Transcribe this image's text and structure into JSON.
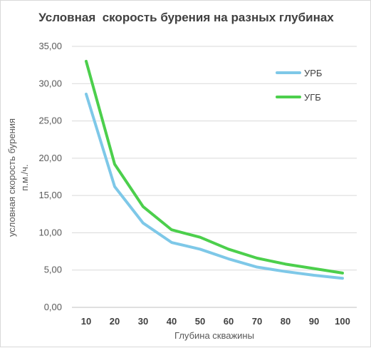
{
  "chart_data": {
    "type": "line",
    "title": "Условная  скорость бурения на разных глубинах",
    "xlabel": "Глубина скважины",
    "ylabel": "условная скорость бурения",
    "ylabel2": "п.м./ч.",
    "categories": [
      "10",
      "20",
      "30",
      "40",
      "50",
      "60",
      "70",
      "80",
      "90",
      "100"
    ],
    "ylim": [
      0,
      35
    ],
    "ytick_step": 5,
    "ytick_labels": [
      "0,00",
      "5,00",
      "10,00",
      "15,00",
      "20,00",
      "25,00",
      "30,00",
      "35,00"
    ],
    "grid": true,
    "legend_position": "top-right",
    "series": [
      {
        "name": "УРБ",
        "color": "#7ec8e8",
        "values": [
          28.6,
          16.2,
          11.3,
          8.7,
          7.8,
          6.5,
          5.4,
          4.8,
          4.3,
          3.9
        ]
      },
      {
        "name": "УГБ",
        "color": "#4ccf4c",
        "values": [
          33.0,
          19.2,
          13.5,
          10.4,
          9.4,
          7.8,
          6.6,
          5.8,
          5.2,
          4.6
        ]
      }
    ]
  }
}
